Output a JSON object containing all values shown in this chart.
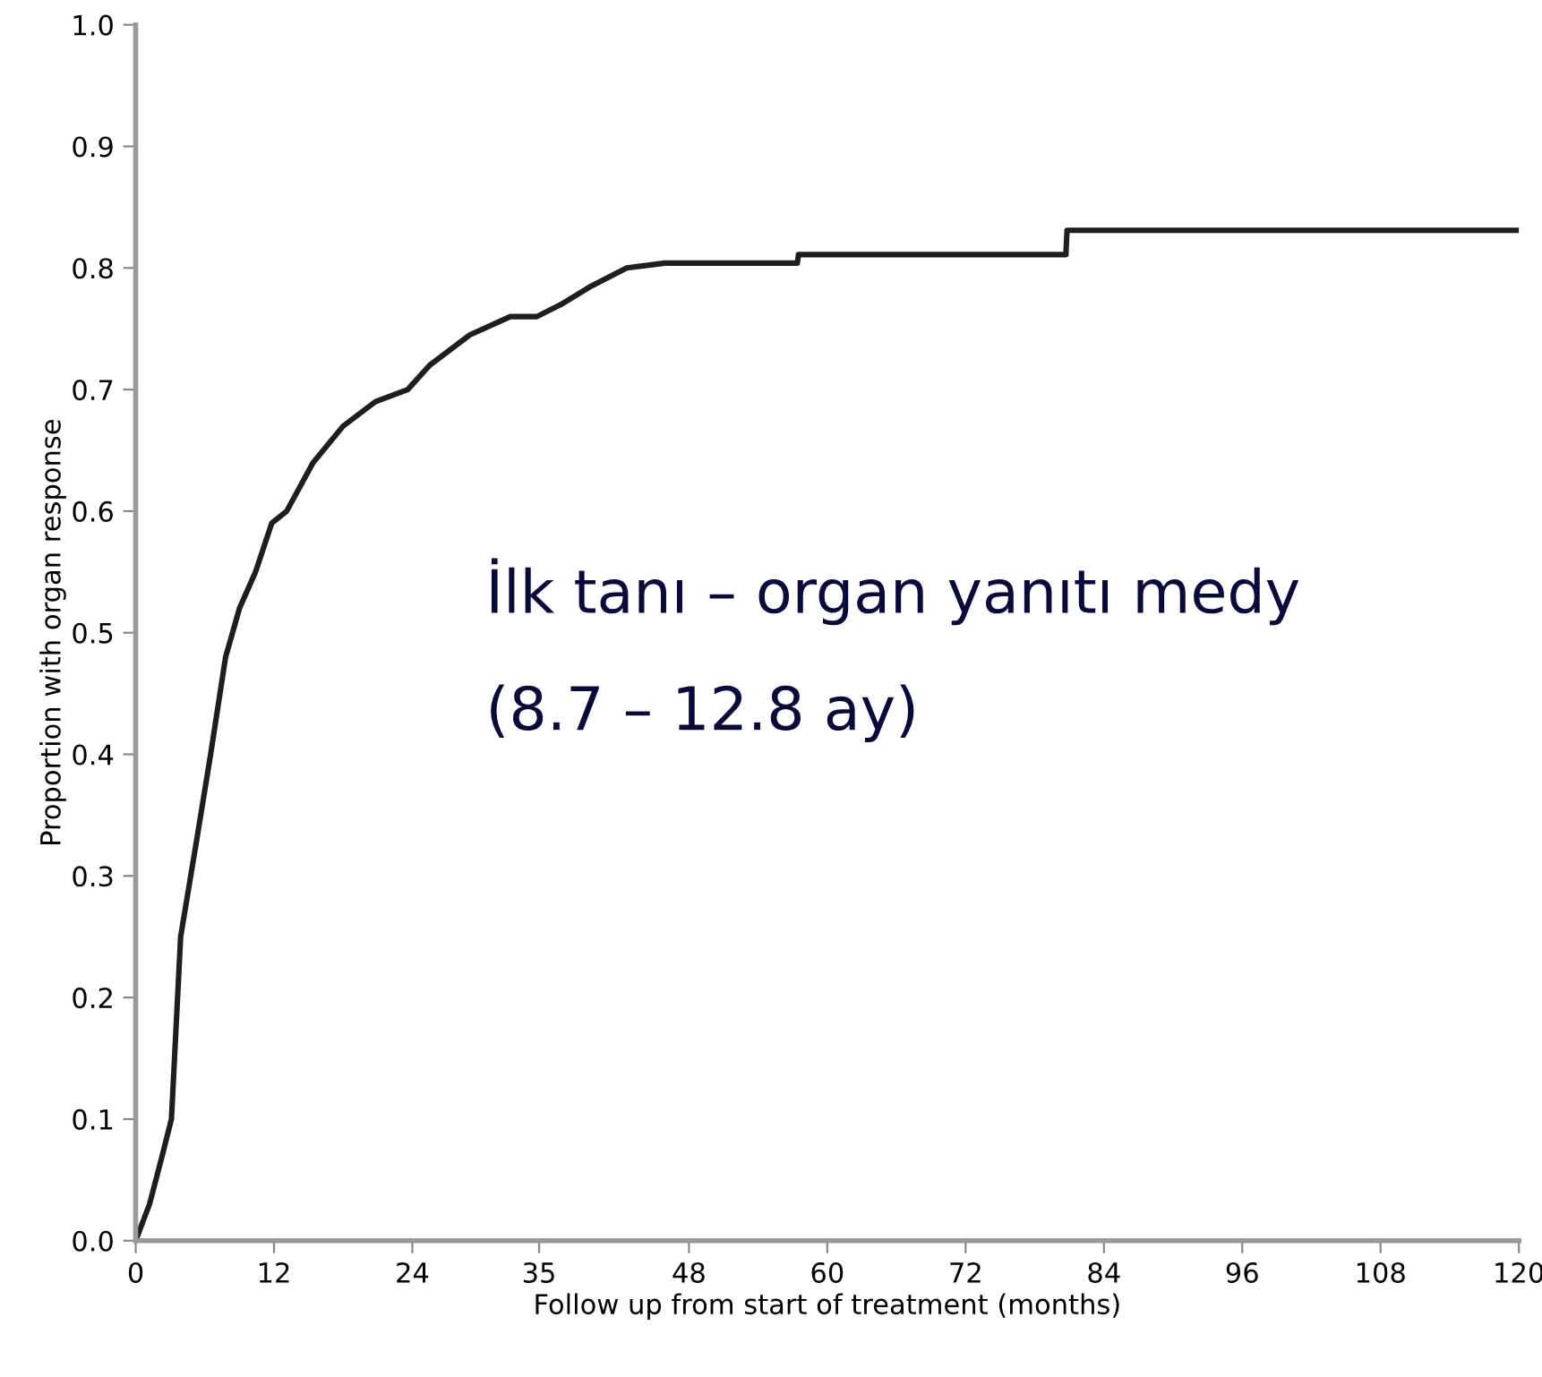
{
  "chart_data": {
    "type": "line",
    "xlabel": "Follow up from start of treatment (months)",
    "ylabel": "Proportion with organ response",
    "x": [
      0,
      1.2,
      2.3,
      3.1,
      3.9,
      5.3,
      6.5,
      7.8,
      9.0,
      10.4,
      11.8,
      13.1,
      15.4,
      18.0,
      20.8,
      23.6,
      25.5,
      29.0,
      32.5,
      34.8,
      36.9,
      39.5,
      42.6,
      45.9,
      57.4,
      57.5,
      80.7,
      80.8,
      120
    ],
    "series": [
      {
        "color": "#1e1e1e",
        "values": [
          0,
          0.03,
          0.07,
          0.1,
          0.25,
          0.33,
          0.4,
          0.48,
          0.52,
          0.55,
          0.59,
          0.6,
          0.64,
          0.67,
          0.69,
          0.7,
          0.72,
          0.745,
          0.76,
          0.76,
          0.77,
          0.785,
          0.8,
          0.804,
          0.804,
          0.811,
          0.811,
          0.831,
          0.831
        ]
      }
    ],
    "xlim": [
      0,
      120
    ],
    "xticks": [
      0,
      12,
      24,
      35,
      48,
      60,
      72,
      84,
      96,
      108,
      120
    ],
    "ylim": [
      0,
      1.0
    ],
    "yticks": [
      {
        "value": 0,
        "label": "0.0"
      },
      0.1,
      0.2,
      0.3,
      0.4,
      0.5,
      0.6,
      0.7,
      0.8,
      0.9,
      {
        "value": 1.0,
        "label": "1.0"
      }
    ],
    "annotations": [
      "İlk tanı – organ yanıtı medy",
      "(8.7 – 12.8 ay)"
    ],
    "grid": false,
    "legend": false,
    "marker": "none",
    "line_style": "solid"
  }
}
